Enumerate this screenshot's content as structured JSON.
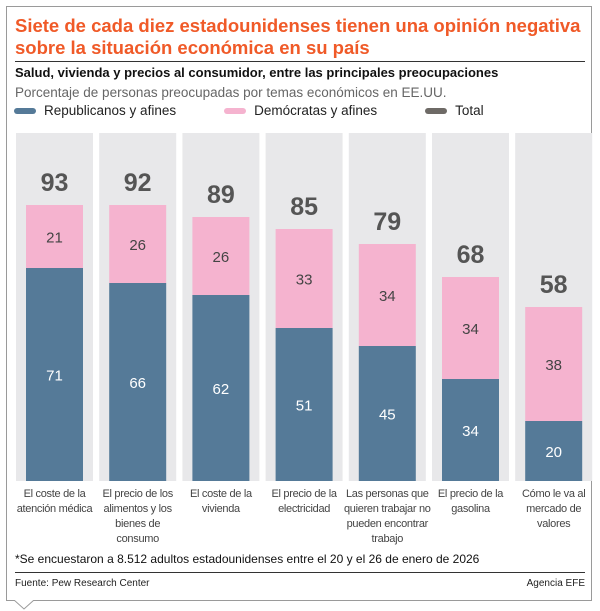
{
  "title": "Siete de cada diez estadounidenses tienen una opinión negativa sobre la situación económica en su país",
  "subtitle": "Salud, vivienda y precios al consumidor, entre las principales preocupaciones",
  "description": "Porcentaje de personas preocupadas por temas económicos en EE.UU.",
  "note": "*Se encuestaron a 8.512 adultos estadounidenses entre el 20 y el 26 de enero de 2026",
  "source": "Fuente: Pew Research Center",
  "credit": "Agencia EFE",
  "colors": {
    "title": "#f05a28",
    "republicanos": "#557a98",
    "democratas": "#f5b3cf",
    "total": "#6e6a66",
    "panel": "#e8e8ea"
  },
  "chart_data": {
    "type": "bar",
    "stacked": true,
    "categories": [
      "El coste de la atención médica",
      "El precio de los alimentos y los bienes de consumo",
      "El coste de la vivienda",
      "El precio de la electricidad",
      "Las personas que quieren trabajar no pueden encontrar trabajo",
      "El precio de la gasolina",
      "Cómo le va al mercado de valores"
    ],
    "series": [
      {
        "name": "Republicanos y afines",
        "values": [
          71,
          66,
          62,
          51,
          45,
          34,
          20
        ]
      },
      {
        "name": "Demócratas y afines",
        "values": [
          21,
          26,
          26,
          33,
          34,
          34,
          38
        ]
      },
      {
        "name": "Total",
        "values": [
          93,
          92,
          89,
          85,
          79,
          68,
          58
        ]
      }
    ],
    "legend": "top-left",
    "grid": false
  }
}
